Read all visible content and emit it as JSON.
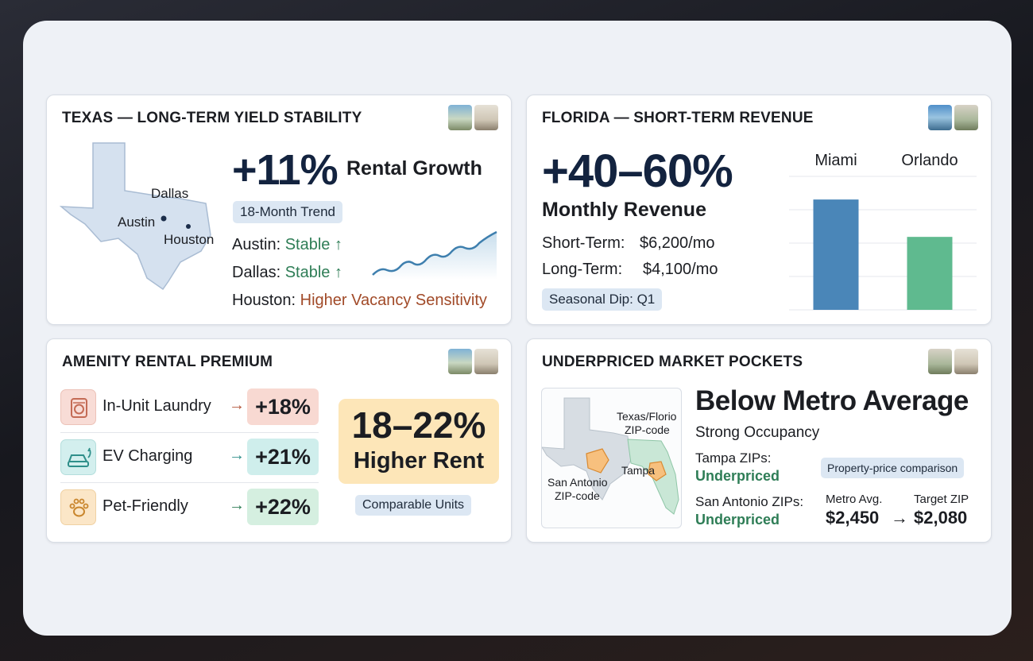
{
  "texas": {
    "title": "TEXAS — LONG-TERM YIELD STABILITY",
    "big_value": "+11%",
    "big_label": "Rental Growth",
    "trend_pill": "18-Month Trend",
    "map_labels": {
      "dallas": "Dallas",
      "austin": "Austin",
      "houston": "Houston"
    },
    "rows": [
      {
        "city": "Austin:",
        "status": "Stable ↑"
      },
      {
        "city": "Dallas:",
        "status": "Stable ↑"
      },
      {
        "city": "Houston:",
        "status": "Higher Vacancy Sensitivity"
      }
    ]
  },
  "florida": {
    "title": "FLORIDA — SHORT-TERM REVENUE",
    "big_value": "+40–60%",
    "big_label": "Monthly Revenue",
    "short_label": "Short-Term:",
    "short_value": "$6,200/mo",
    "long_label": "Long-Term:",
    "long_value": "$4,100/mo",
    "pill": "Seasonal Dip: Q1"
  },
  "chart_data": {
    "type": "bar",
    "categories": [
      "Miami",
      "Orlando"
    ],
    "values": [
      6200,
      4100
    ],
    "title": "",
    "xlabel": "",
    "ylabel": "",
    "ylim": [
      0,
      7500
    ],
    "grid": true,
    "colors": [
      "#4a86b8",
      "#5fba8f"
    ]
  },
  "amenity": {
    "title": "AMENITY RENTAL PREMIUM",
    "items": [
      {
        "label": "In-Unit Laundry",
        "arrow": "→",
        "value": "+18%",
        "icon": "washing-machine-icon"
      },
      {
        "label": "EV Charging",
        "arrow": "→",
        "value": "+21%",
        "icon": "ev-car-icon"
      },
      {
        "label": "Pet-Friendly",
        "arrow": "→",
        "value": "+22%",
        "icon": "paw-icon"
      }
    ],
    "highlight_value": "18–22%",
    "highlight_label": "Higher Rent",
    "pill": "Comparable Units"
  },
  "underpriced": {
    "title": "UNDERPRICED MARKET POCKETS",
    "headline": "Below Metro Average",
    "subhead": "Strong Occupancy",
    "map_labels": {
      "tx_fl_a": "Texas/Florio",
      "tx_fl_b": "ZIP-code",
      "tampa": "Tampa",
      "sa_a": "San Antonio",
      "sa_b": "ZIP-code"
    },
    "tampa_label": "Tampa ZIPs:",
    "tampa_status": "Underpriced",
    "sa_label": "San Antonio ZIPs:",
    "sa_status": "Underpriced",
    "pill": "Property-price comparison",
    "metro_label": "Metro Avg.",
    "target_label": "Target ZIP",
    "metro_value": "$2,450",
    "arrow": "→",
    "target_value": "$2,080"
  }
}
